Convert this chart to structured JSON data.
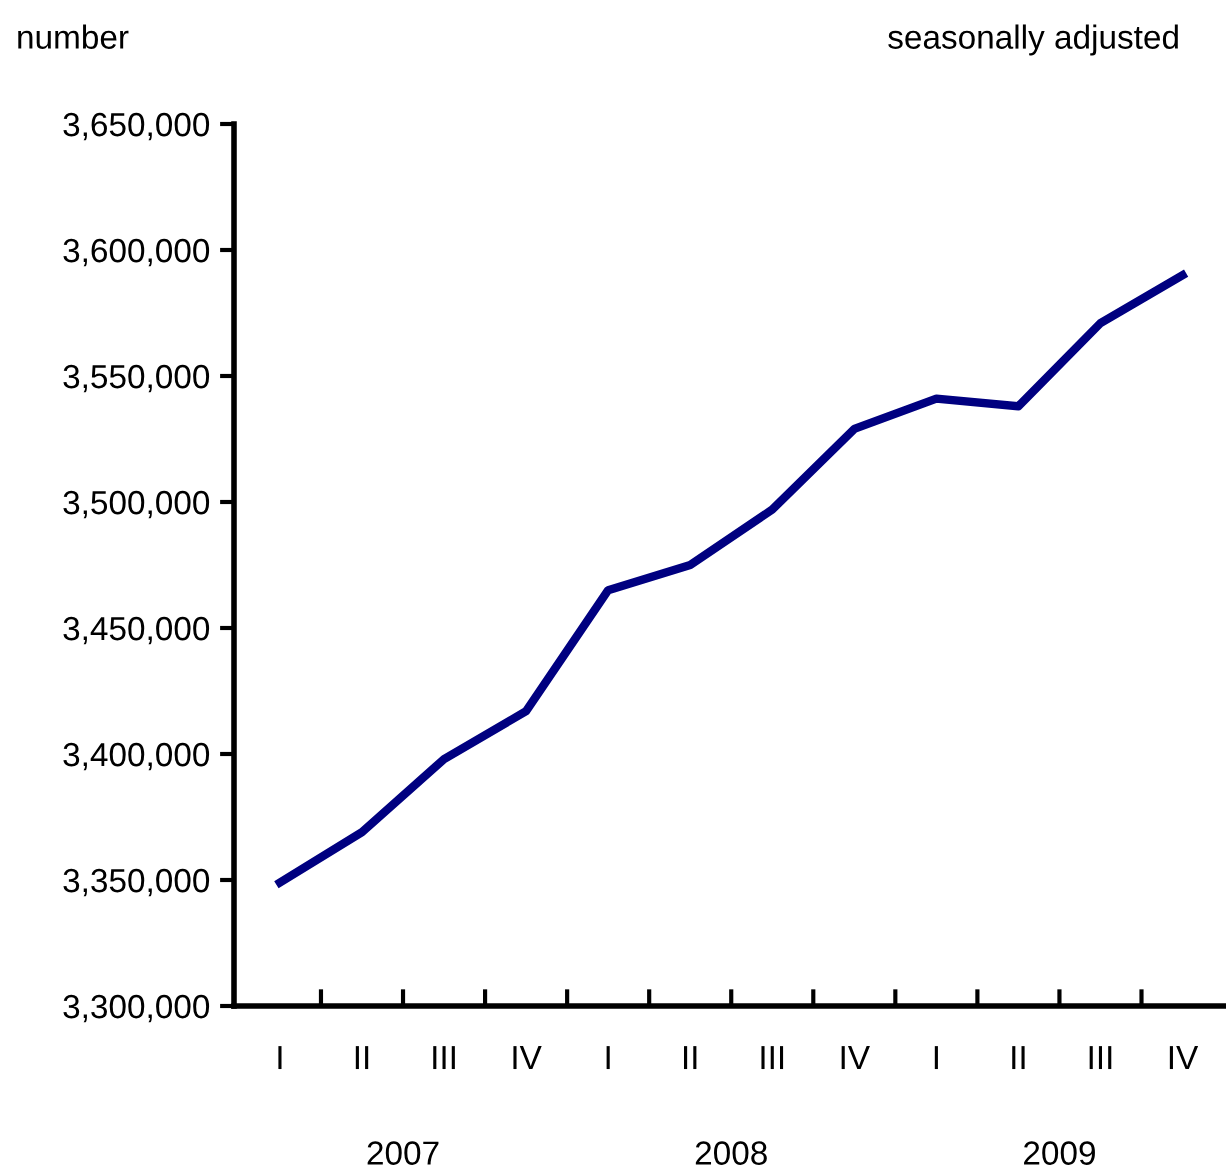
{
  "chart_data": {
    "type": "line",
    "subtitle": "seasonally adjusted",
    "ylabel": "number",
    "categories": [
      "I",
      "II",
      "III",
      "IV",
      "I",
      "II",
      "III",
      "IV",
      "I",
      "II",
      "III",
      "IV"
    ],
    "series": [
      {
        "color": "#000080",
        "values": [
          3349000,
          3369000,
          3398000,
          3417000,
          3465000,
          3475000,
          3497000,
          3529000,
          3541000,
          3538000,
          3571000,
          3590000
        ]
      }
    ],
    "ylim": [
      3300000,
      3650000
    ],
    "yticks": [
      {
        "value": 3300000,
        "label": "3,300,000"
      },
      {
        "value": 3350000,
        "label": "3,350,000"
      },
      {
        "value": 3400000,
        "label": "3,400,000"
      },
      {
        "value": 3450000,
        "label": "3,450,000"
      },
      {
        "value": 3500000,
        "label": "3,500,000"
      },
      {
        "value": 3550000,
        "label": "3,550,000"
      },
      {
        "value": 3600000,
        "label": "3,600,000"
      },
      {
        "value": 3650000,
        "label": "3,650,000"
      }
    ],
    "annotations": [
      "2007",
      "2008",
      "2009"
    ],
    "grid": false,
    "legend": false,
    "marker": "none",
    "line_style": "solid"
  }
}
